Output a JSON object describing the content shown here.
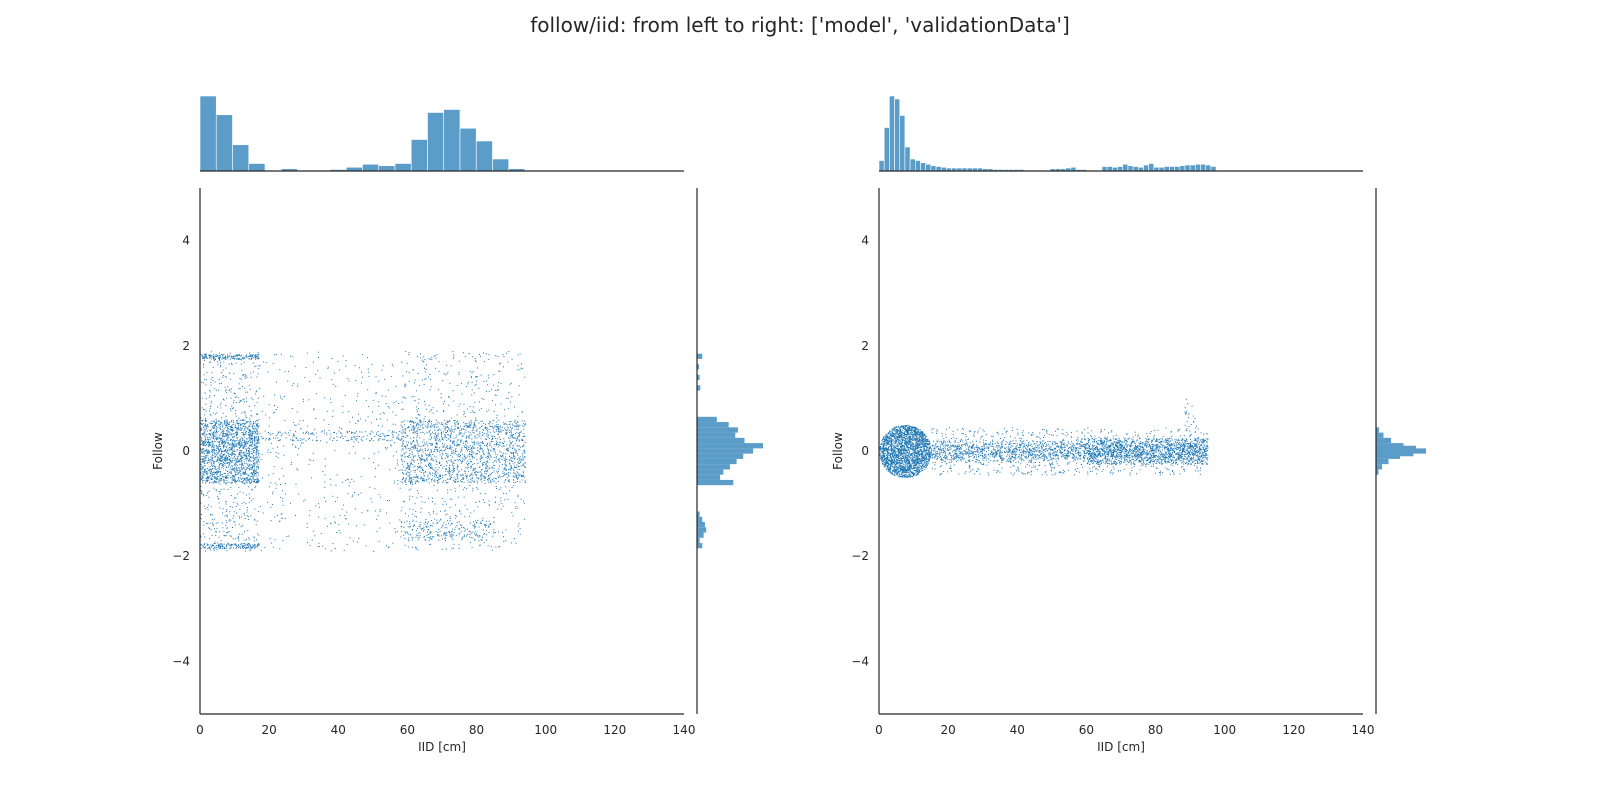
{
  "title": "follow/iid: from left to right: ['model', 'validationData']",
  "colors": {
    "point": "#1f77b4",
    "hist": "#5b9cc9",
    "axis": "#262626"
  },
  "chart_data": [
    {
      "type": "scatter",
      "name": "model",
      "xlabel": "IID [cm]",
      "ylabel": "Follow",
      "xlim": [
        0,
        140
      ],
      "ylim": [
        -5,
        5
      ],
      "x_ticks": [
        0,
        20,
        40,
        60,
        80,
        100,
        120,
        140
      ],
      "y_ticks": [
        -4,
        -2,
        0,
        2,
        4
      ],
      "grid": false,
      "marginal_x_histogram": {
        "bin_start": 0,
        "bin_width": 4.7,
        "counts": [
          100,
          75,
          35,
          10,
          0,
          3,
          0,
          0,
          2,
          5,
          9,
          7,
          10,
          42,
          78,
          82,
          57,
          40,
          16,
          3
        ]
      },
      "marginal_y_histogram": {
        "bin_centers": [
          -1.8,
          -1.7,
          -1.6,
          -1.5,
          -1.4,
          -1.3,
          -1.2,
          -0.6,
          -0.5,
          -0.4,
          -0.3,
          -0.2,
          -0.1,
          0.0,
          0.1,
          0.2,
          0.3,
          0.4,
          0.5,
          0.6,
          1.2,
          1.4,
          1.6,
          1.8
        ],
        "counts": [
          8,
          4,
          10,
          14,
          12,
          8,
          4,
          55,
          35,
          40,
          50,
          60,
          70,
          85,
          100,
          72,
          58,
          62,
          48,
          30,
          5,
          4,
          3,
          8
        ]
      },
      "point_clusters": [
        {
          "x_range": [
            0,
            17
          ],
          "y_range": [
            -0.6,
            0.6
          ],
          "n": 1400
        },
        {
          "x_range": [
            0,
            17
          ],
          "y_range": [
            -1.9,
            1.9
          ],
          "n": 600
        },
        {
          "x_range": [
            0,
            17
          ],
          "y_range": [
            1.75,
            1.85
          ],
          "n": 150
        },
        {
          "x_range": [
            0,
            17
          ],
          "y_range": [
            -1.85,
            -1.75
          ],
          "n": 150
        },
        {
          "x_range": [
            17,
            58
          ],
          "y_range": [
            -1.9,
            1.9
          ],
          "n": 420
        },
        {
          "x_range": [
            17,
            58
          ],
          "y_range": [
            0.2,
            0.4
          ],
          "n": 160
        },
        {
          "x_range": [
            58,
            94
          ],
          "y_range": [
            -0.6,
            0.6
          ],
          "n": 1400
        },
        {
          "x_range": [
            58,
            94
          ],
          "y_range": [
            -1.9,
            1.9
          ],
          "n": 700
        },
        {
          "x_range": [
            58,
            85
          ],
          "y_range": [
            -1.7,
            -1.3
          ],
          "n": 200
        }
      ]
    },
    {
      "type": "scatter",
      "name": "validationData",
      "xlabel": "IID [cm]",
      "ylabel": "Follow",
      "xlim": [
        0,
        140
      ],
      "ylim": [
        -5,
        5
      ],
      "x_ticks": [
        0,
        20,
        40,
        60,
        80,
        100,
        120,
        140
      ],
      "y_ticks": [
        -4,
        -2,
        0,
        2,
        4
      ],
      "grid": false,
      "marginal_x_histogram": {
        "bin_start": 0,
        "bin_width": 1.5,
        "counts": [
          14,
          58,
          100,
          96,
          74,
          32,
          16,
          14,
          11,
          9,
          7,
          6,
          5,
          4,
          4,
          4,
          4,
          4,
          4,
          4,
          3,
          3,
          2,
          2,
          2,
          2,
          2,
          2,
          1,
          1,
          1,
          1,
          1,
          3,
          3,
          3,
          4,
          5,
          2,
          2,
          1,
          1,
          1,
          6,
          6,
          5,
          6,
          9,
          7,
          6,
          5,
          8,
          10,
          5,
          5,
          6,
          6,
          6,
          7,
          8,
          8,
          9,
          9,
          8,
          6
        ]
      },
      "marginal_y_histogram": {
        "bin_centers": [
          -0.4,
          -0.3,
          -0.2,
          -0.1,
          -0.05,
          0.0,
          0.05,
          0.1,
          0.2,
          0.3,
          0.4
        ],
        "counts": [
          5,
          12,
          25,
          48,
          75,
          100,
          80,
          55,
          30,
          15,
          6
        ]
      },
      "point_clusters": [
        {
          "x_range": [
            0,
            15
          ],
          "y_range": [
            -0.5,
            0.5
          ],
          "n": 2200
        },
        {
          "x_range": [
            15,
            95
          ],
          "y_range": [
            -0.15,
            0.15
          ],
          "n": 1600
        },
        {
          "x_range": [
            15,
            95
          ],
          "y_range": [
            -0.45,
            0.45
          ],
          "n": 800
        },
        {
          "x_range": [
            60,
            95
          ],
          "y_range": [
            -0.25,
            0.25
          ],
          "n": 800
        },
        {
          "x_range": [
            88,
            92
          ],
          "y_range": [
            0.3,
            1.0
          ],
          "n": 25
        }
      ]
    }
  ]
}
